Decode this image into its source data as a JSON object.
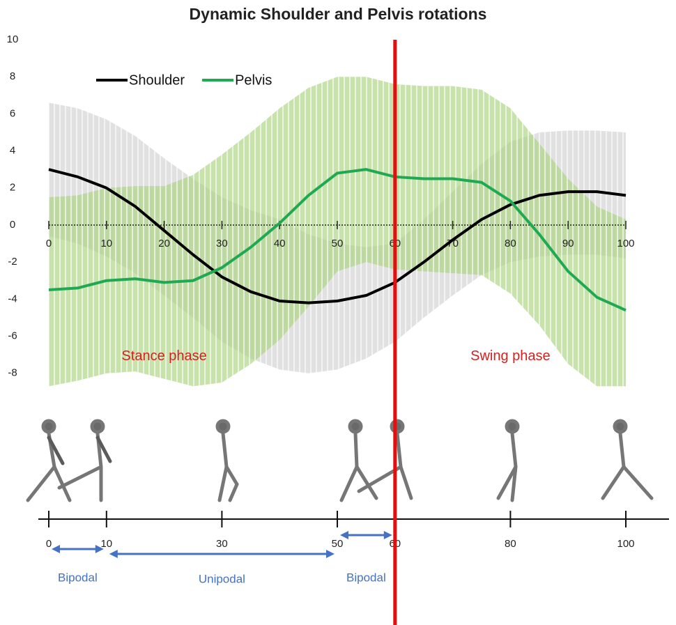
{
  "chart_data": {
    "type": "line",
    "title": "Dynamic Shoulder and Pelvis rotations",
    "x": [
      0,
      5,
      10,
      15,
      20,
      25,
      30,
      35,
      40,
      45,
      50,
      55,
      60,
      65,
      70,
      75,
      80,
      85,
      90,
      95,
      100
    ],
    "xlim": [
      0,
      100
    ],
    "xticks": [
      0,
      10,
      20,
      30,
      40,
      50,
      60,
      70,
      80,
      90,
      100
    ],
    "ylim": [
      -8.8,
      10
    ],
    "yticks": [
      -8,
      -6,
      -4,
      -2,
      0,
      2,
      4,
      6,
      8,
      10
    ],
    "grid": false,
    "legend": "upper left",
    "series": [
      {
        "name": "Shoulder",
        "color": "#000000",
        "band_color": "#d4d4d4",
        "values": [
          3.0,
          2.6,
          2.0,
          1.0,
          -0.3,
          -1.6,
          -2.8,
          -3.6,
          -4.1,
          -4.2,
          -4.1,
          -3.8,
          -3.1,
          -2.0,
          -0.8,
          0.3,
          1.1,
          1.6,
          1.8,
          1.8,
          1.6
        ],
        "band_upper": [
          6.6,
          6.3,
          5.7,
          4.8,
          3.6,
          2.5,
          1.5,
          0.8,
          0.3,
          -0.5,
          -1.0,
          -1.2,
          -1.0,
          0.3,
          1.8,
          3.3,
          4.5,
          5.0,
          5.1,
          5.1,
          5.0
        ],
        "band_lower": [
          -0.6,
          -1.0,
          -1.7,
          -2.6,
          -3.8,
          -5.0,
          -6.3,
          -7.2,
          -7.8,
          -8.0,
          -7.8,
          -7.2,
          -6.3,
          -5.0,
          -3.8,
          -2.7,
          -2.0,
          -1.7,
          -1.6,
          -1.6,
          -1.8
        ]
      },
      {
        "name": "Pelvis",
        "color": "#1ea952",
        "band_color": "#a9d37e",
        "values": [
          -3.5,
          -3.4,
          -3.0,
          -2.9,
          -3.1,
          -3.0,
          -2.3,
          -1.2,
          0.1,
          1.6,
          2.8,
          3.0,
          2.6,
          2.5,
          2.5,
          2.3,
          1.3,
          -0.5,
          -2.5,
          -3.9,
          -4.6
        ],
        "band_upper": [
          1.5,
          1.6,
          2.0,
          2.1,
          2.1,
          2.7,
          3.8,
          5.0,
          6.3,
          7.4,
          8.0,
          8.0,
          7.6,
          7.5,
          7.5,
          7.3,
          6.3,
          4.4,
          2.5,
          1.0,
          0.3
        ],
        "band_lower": [
          -8.7,
          -8.4,
          -8.0,
          -7.9,
          -8.3,
          -8.7,
          -8.5,
          -7.5,
          -6.2,
          -4.4,
          -2.5,
          -2.0,
          -2.4,
          -2.5,
          -2.6,
          -2.7,
          -3.7,
          -5.4,
          -7.5,
          -8.7,
          -8.7
        ]
      }
    ],
    "annotations": [
      {
        "text": "Stance phase",
        "x": 20,
        "y": -7.1,
        "color": "#d62020"
      },
      {
        "text": "Swing phase",
        "x": 80,
        "y": -7.1,
        "color": "#d62020"
      }
    ],
    "vline": {
      "x": 60,
      "color": "#e01010"
    },
    "gait_timeline": {
      "ticks": [
        0,
        10,
        30,
        50,
        60,
        80,
        100
      ],
      "phases": [
        {
          "label": "Bipodal",
          "start": 0,
          "end": 10,
          "color": "#4472c4"
        },
        {
          "label": "Unipodal",
          "start": 10,
          "end": 50,
          "color": "#4472c4"
        },
        {
          "label": "Bipodal",
          "start": 50,
          "end": 60,
          "color": "#4472c4"
        }
      ]
    }
  }
}
